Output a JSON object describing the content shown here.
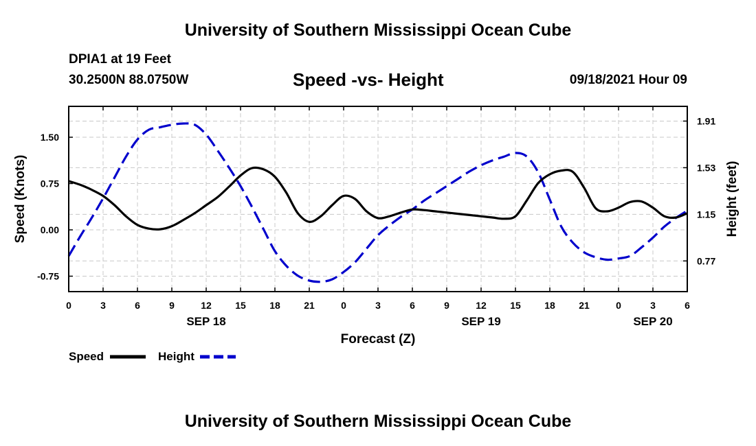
{
  "header": {
    "title": "University of Southern Mississippi Ocean Cube",
    "station": "DPIA1 at 19 Feet",
    "coordinates": "30.2500N  88.0750W",
    "timestamp": "09/18/2021 Hour 09"
  },
  "footer": {
    "title": "University of Southern Mississippi Ocean Cube"
  },
  "chart_data": {
    "type": "line",
    "title": "Speed -vs- Height",
    "xlabel": "Forecast (Z)",
    "ylabel_left": "Speed (Knots)",
    "ylabel_right": "Height (feet)",
    "x_range": [
      0,
      54
    ],
    "x_ticks": [
      0,
      3,
      6,
      9,
      12,
      15,
      18,
      21,
      24,
      27,
      30,
      33,
      36,
      39,
      42,
      45,
      48,
      51,
      54
    ],
    "x_tick_labels": [
      "0",
      "3",
      "6",
      "9",
      "12",
      "15",
      "18",
      "21",
      "0",
      "3",
      "6",
      "9",
      "12",
      "15",
      "18",
      "21",
      "0",
      "3",
      "6"
    ],
    "date_labels": [
      {
        "hour": 12,
        "label": "SEP 18"
      },
      {
        "hour": 36,
        "label": "SEP 19"
      },
      {
        "hour": 51,
        "label": "SEP 20"
      }
    ],
    "ylim_left": [
      -1.0,
      2.0
    ],
    "y_ticks_left": [
      -0.75,
      0.0,
      0.75,
      1.5
    ],
    "y_tick_labels_left": [
      "-0.75",
      "0.00",
      "0.75",
      "1.50"
    ],
    "ylim_right": [
      0.52,
      2.03
    ],
    "y_ticks_right": [
      0.77,
      1.15,
      1.53,
      1.91
    ],
    "y_tick_labels_right": [
      "0.77",
      "1.15",
      "1.53",
      "1.91"
    ],
    "grid": true,
    "series": [
      {
        "name": "Speed",
        "axis": "left",
        "color": "#000000",
        "dash": "solid",
        "x": [
          0,
          1,
          2,
          3,
          4,
          5,
          6,
          7,
          8,
          9,
          10,
          11,
          12,
          13,
          14,
          15,
          16,
          17,
          18,
          19,
          20,
          21,
          22,
          23,
          24,
          25,
          26,
          27,
          28,
          29,
          30,
          31,
          32,
          33,
          34,
          35,
          36,
          37,
          38,
          39,
          40,
          41,
          42,
          43,
          44,
          45,
          46,
          47,
          48,
          49,
          50,
          51,
          52,
          53,
          54
        ],
        "values": [
          0.79,
          0.73,
          0.65,
          0.55,
          0.4,
          0.22,
          0.08,
          0.02,
          0.01,
          0.06,
          0.16,
          0.27,
          0.4,
          0.53,
          0.7,
          0.88,
          1.0,
          0.98,
          0.86,
          0.6,
          0.27,
          0.13,
          0.22,
          0.4,
          0.55,
          0.5,
          0.3,
          0.19,
          0.22,
          0.28,
          0.33,
          0.32,
          0.3,
          0.28,
          0.26,
          0.24,
          0.22,
          0.2,
          0.18,
          0.22,
          0.48,
          0.76,
          0.9,
          0.96,
          0.94,
          0.68,
          0.35,
          0.3,
          0.36,
          0.45,
          0.46,
          0.36,
          0.22,
          0.2,
          0.27
        ]
      },
      {
        "name": "Height",
        "axis": "right",
        "color": "#0000cc",
        "dash": "dashed",
        "x": [
          0,
          1,
          2,
          3,
          4,
          5,
          6,
          7,
          8,
          9,
          10,
          11,
          12,
          13,
          14,
          15,
          16,
          17,
          18,
          19,
          20,
          21,
          22,
          23,
          24,
          25,
          26,
          27,
          28,
          29,
          30,
          31,
          32,
          33,
          34,
          35,
          36,
          37,
          38,
          39,
          40,
          41,
          42,
          43,
          44,
          45,
          46,
          47,
          48,
          49,
          50,
          51,
          52,
          53,
          54
        ],
        "values": [
          0.81,
          0.97,
          1.12,
          1.28,
          1.45,
          1.62,
          1.76,
          1.84,
          1.86,
          1.88,
          1.89,
          1.88,
          1.8,
          1.67,
          1.53,
          1.38,
          1.21,
          1.03,
          0.85,
          0.73,
          0.65,
          0.61,
          0.6,
          0.62,
          0.68,
          0.76,
          0.87,
          0.98,
          1.06,
          1.13,
          1.19,
          1.26,
          1.32,
          1.38,
          1.44,
          1.5,
          1.55,
          1.59,
          1.62,
          1.65,
          1.62,
          1.49,
          1.27,
          1.05,
          0.92,
          0.84,
          0.8,
          0.78,
          0.79,
          0.81,
          0.88,
          0.96,
          1.05,
          1.12,
          1.18
        ]
      }
    ],
    "legend": {
      "placement": "bottom-left",
      "entries": [
        {
          "name": "Speed",
          "color": "#000000",
          "dash": "solid"
        },
        {
          "name": "Height",
          "color": "#0000cc",
          "dash": "dashed"
        }
      ]
    }
  }
}
